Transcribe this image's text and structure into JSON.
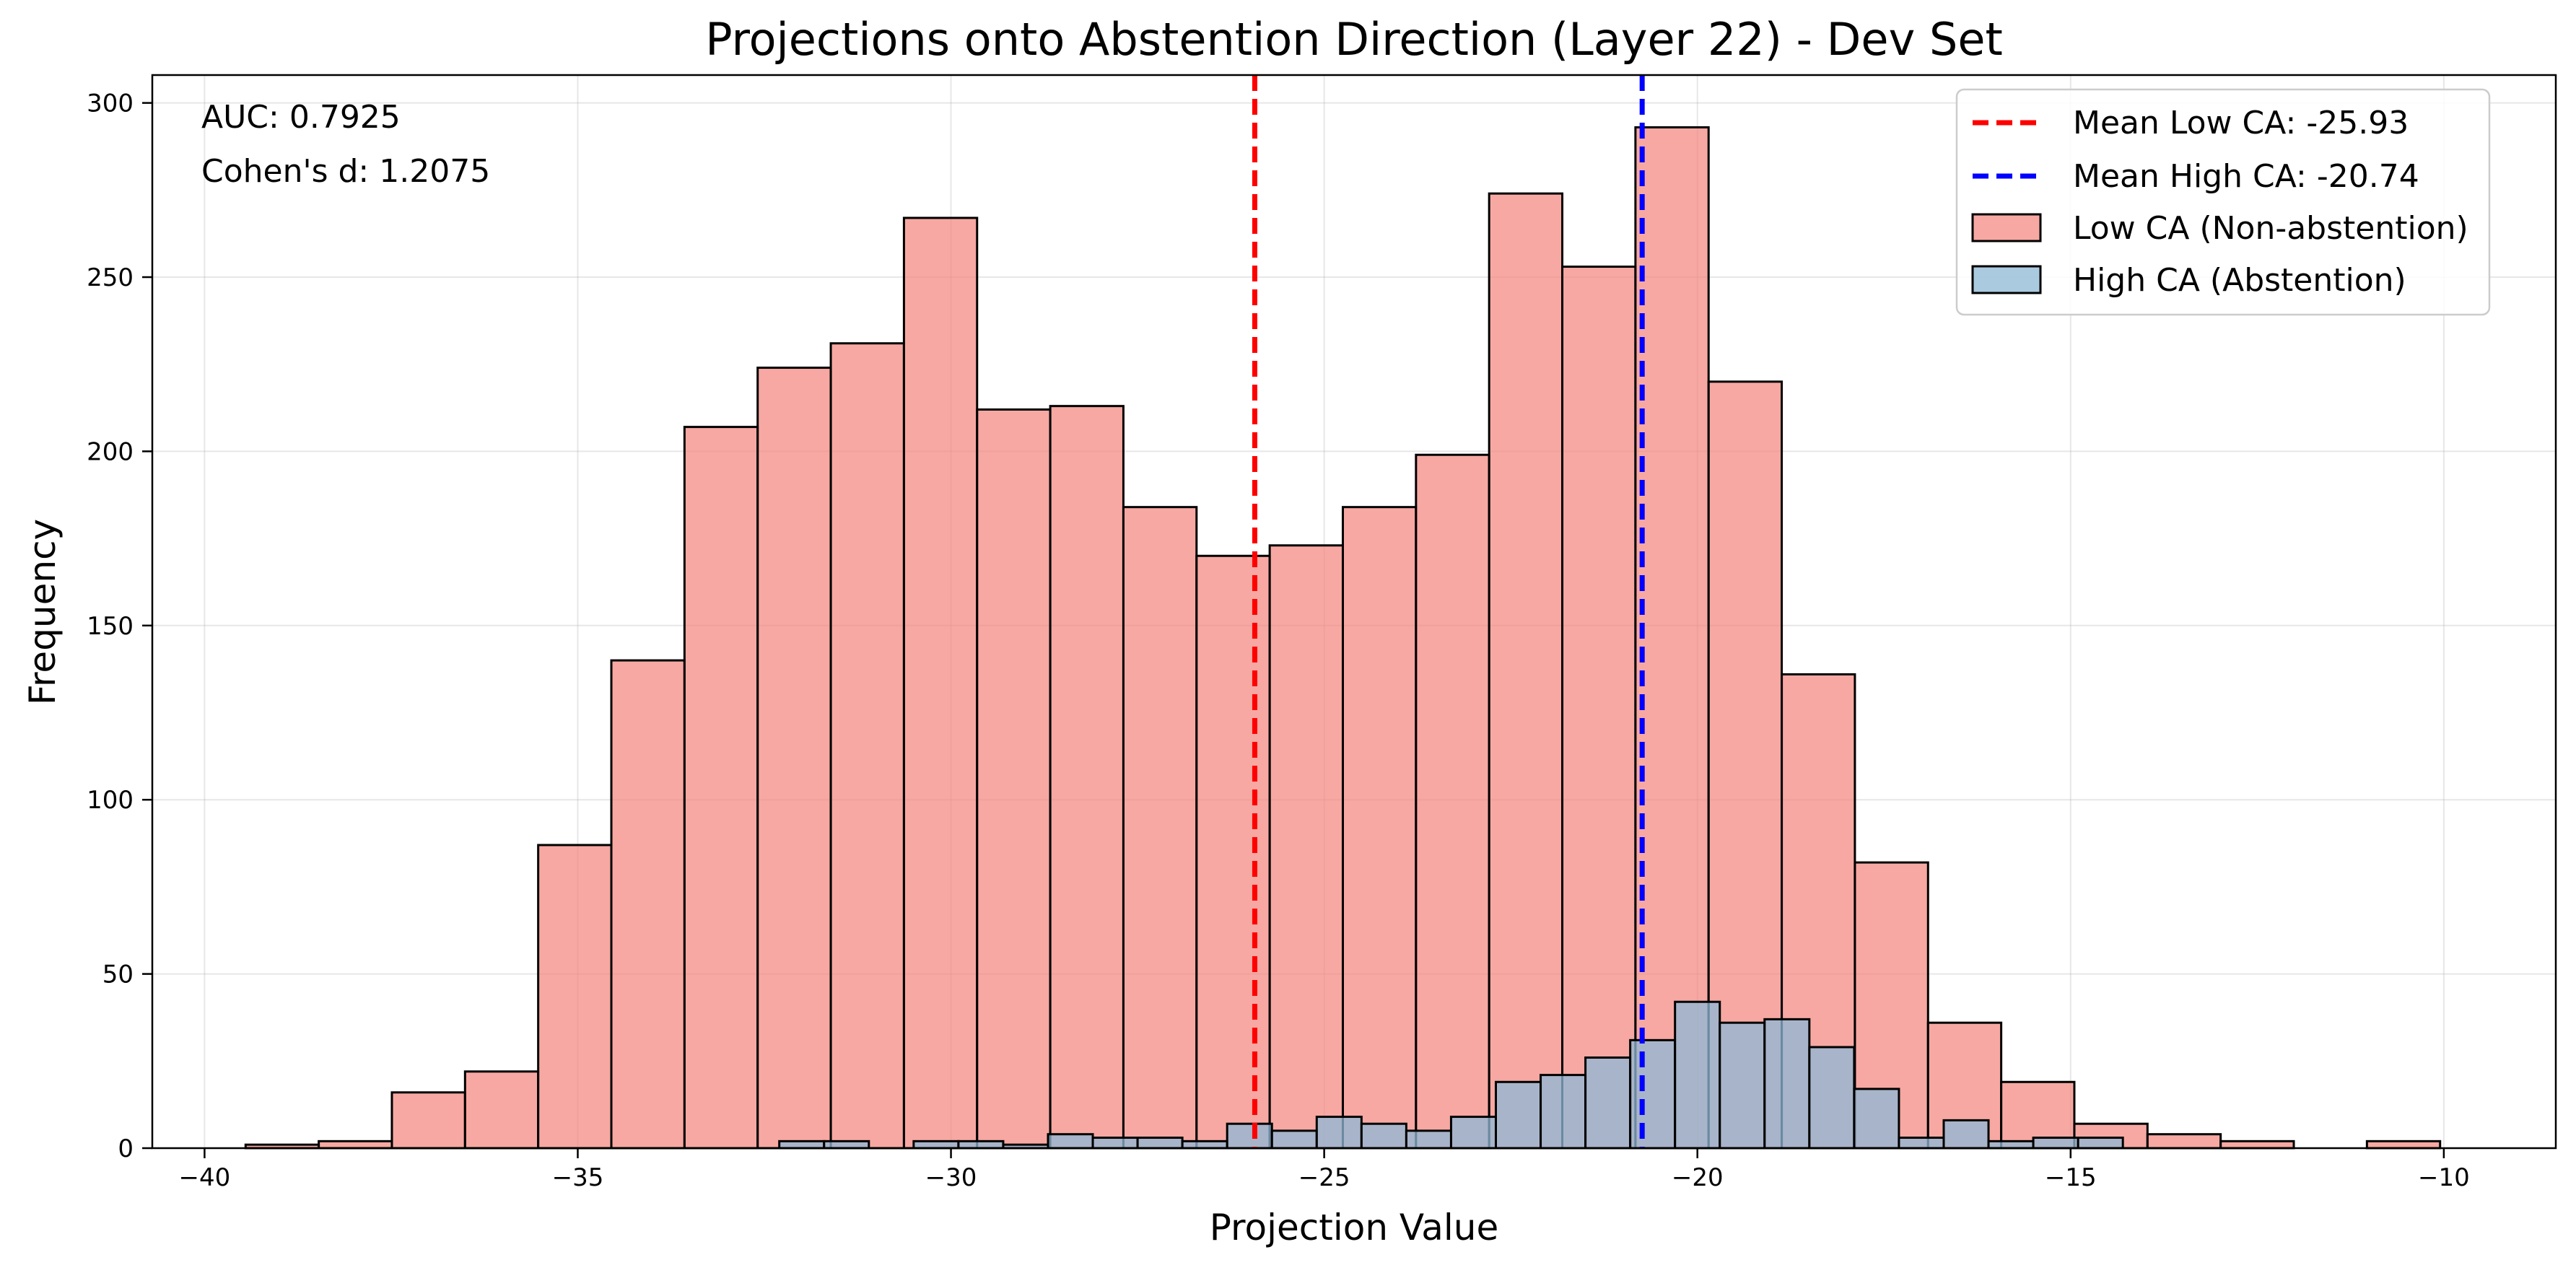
{
  "chart_data": {
    "type": "bar",
    "subtype": "histogram",
    "title": "Projections onto Abstention Direction (Layer 22) - Dev Set",
    "xlabel": "Projection Value",
    "ylabel": "Frequency",
    "xlim": [
      -40.7,
      -8.5
    ],
    "ylim": [
      0,
      308
    ],
    "xticks": [
      -40,
      -35,
      -30,
      -25,
      -20,
      -15,
      -10
    ],
    "xtick_labels": [
      "−40",
      "−35",
      "−30",
      "−25",
      "−20",
      "−15",
      "−10"
    ],
    "yticks": [
      0,
      50,
      100,
      150,
      200,
      250,
      300
    ],
    "ytick_labels": [
      "0",
      "50",
      "100",
      "150",
      "200",
      "250",
      "300"
    ],
    "grid": true,
    "annotations": [
      "AUC: 0.7925",
      "Cohen's d: 1.2075"
    ],
    "legend_position": "top-right",
    "series": [
      {
        "name": "Low CA (Non-abstention)",
        "color": "#f4837a",
        "edgecolor": "#000000",
        "bin_start": -39.45,
        "bin_width": 0.98,
        "values": [
          1,
          2,
          16,
          22,
          87,
          140,
          207,
          224,
          231,
          267,
          212,
          213,
          184,
          170,
          173,
          184,
          199,
          274,
          253,
          293,
          220,
          136,
          82,
          36,
          19,
          7,
          4,
          2,
          0,
          2
        ]
      },
      {
        "name": "High CA (Abstention)",
        "color": "#8db8d6",
        "edgecolor": "#000000",
        "bin_start": -32.3,
        "bin_width": 0.6,
        "values": [
          2,
          2,
          0,
          2,
          2,
          1,
          4,
          3,
          3,
          2,
          7,
          5,
          9,
          7,
          5,
          9,
          19,
          21,
          26,
          31,
          42,
          36,
          37,
          29,
          17,
          3,
          8,
          2,
          3,
          3
        ]
      }
    ],
    "mean_lines": [
      {
        "name": "Mean Low CA: -25.93",
        "x": -25.93,
        "color": "#ff0000"
      },
      {
        "name": "Mean High CA: -20.74",
        "x": -20.74,
        "color": "#0000ff"
      }
    ]
  }
}
